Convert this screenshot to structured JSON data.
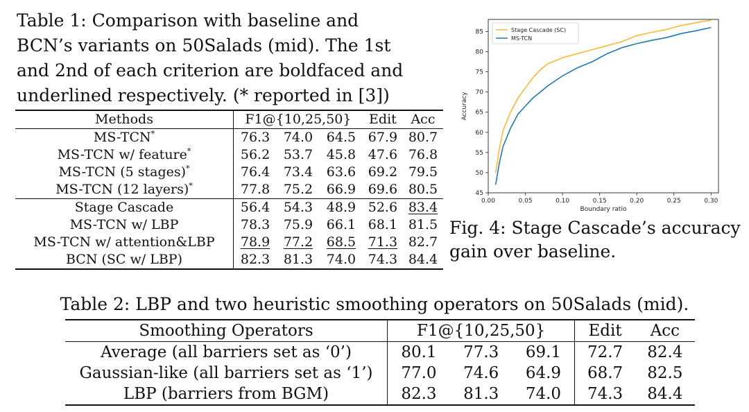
{
  "table1": {
    "caption_lines": [
      "Table 1: Comparison with baseline and",
      "BCN’s variants on 50Salads (mid). The 1st",
      "and 2nd of each criterion are boldfaced and",
      "underlined respectively. (* reported in [3])"
    ],
    "headers": {
      "methods": "Methods",
      "f1": "F1@{10,25,50}",
      "edit": "Edit",
      "acc": "Acc"
    },
    "rows": [
      {
        "method": "MS-TCN",
        "mark": "*",
        "f10": "76.3",
        "f25": "74.0",
        "f50": "64.5",
        "edit": "67.9",
        "acc": "80.7"
      },
      {
        "method": "MS-TCN w/ feature",
        "mark": "*",
        "f10": "56.2",
        "f25": "53.7",
        "f50": "45.8",
        "edit": "47.6",
        "acc": "76.8"
      },
      {
        "method": "MS-TCN (5 stages)",
        "mark": "*",
        "f10": "76.4",
        "f25": "73.4",
        "f50": "63.6",
        "edit": "69.2",
        "acc": "79.5"
      },
      {
        "method": "MS-TCN (12 layers)",
        "mark": "*",
        "f10": "77.8",
        "f25": "75.2",
        "f50": "66.9",
        "edit": "69.6",
        "acc": "80.5"
      },
      {
        "method": "Stage Cascade",
        "mark": "",
        "f10": "56.4",
        "f25": "54.3",
        "f50": "48.9",
        "edit": "52.6",
        "acc": "83.4"
      },
      {
        "method": "MS-TCN w/ LBP",
        "mark": "",
        "f10": "78.3",
        "f25": "75.9",
        "f50": "66.1",
        "edit": "68.1",
        "acc": "81.5"
      },
      {
        "method": "MS-TCN w/ attention&LBP",
        "mark": "",
        "f10": "78.9",
        "f25": "77.2",
        "f50": "68.5",
        "edit": "71.3",
        "acc": "82.7"
      },
      {
        "method": "BCN (SC w/ LBP)",
        "mark": "",
        "f10": "82.3",
        "f25": "81.3",
        "f50": "74.0",
        "edit": "74.3",
        "acc": "84.4"
      }
    ]
  },
  "figure4": {
    "caption_lines": [
      "Fig. 4: Stage Cascade’s accuracy",
      "gain over baseline."
    ]
  },
  "chart_data": {
    "type": "line",
    "title": "",
    "xlabel": "Boundary ratio",
    "ylabel": "Accuracy",
    "xlim": [
      0.0,
      0.31
    ],
    "ylim": [
      45,
      88
    ],
    "xticks": [
      "0.00",
      "0.05",
      "0.10",
      "0.15",
      "0.20",
      "0.25",
      "0.30"
    ],
    "yticks": [
      "45",
      "50",
      "55",
      "60",
      "65",
      "70",
      "75",
      "80",
      "85"
    ],
    "legend_position": "top-left",
    "series": [
      {
        "name": "Stage Cascade (SC)",
        "color": "#ffb733",
        "x": [
          0.01,
          0.015,
          0.02,
          0.03,
          0.04,
          0.05,
          0.06,
          0.07,
          0.08,
          0.1,
          0.12,
          0.14,
          0.16,
          0.18,
          0.2,
          0.22,
          0.24,
          0.26,
          0.28,
          0.3
        ],
        "y": [
          50.0,
          56.0,
          60.5,
          65.0,
          68.5,
          71.0,
          73.5,
          75.5,
          77.0,
          78.5,
          79.5,
          80.5,
          81.5,
          82.5,
          84.0,
          84.8,
          85.5,
          86.5,
          87.2,
          87.8
        ]
      },
      {
        "name": "MS-TCN",
        "color": "#1f77b4",
        "x": [
          0.01,
          0.015,
          0.02,
          0.03,
          0.04,
          0.05,
          0.06,
          0.07,
          0.08,
          0.1,
          0.12,
          0.14,
          0.16,
          0.18,
          0.2,
          0.22,
          0.24,
          0.26,
          0.28,
          0.3
        ],
        "y": [
          47.0,
          52.5,
          56.5,
          61.0,
          64.5,
          66.5,
          68.5,
          70.0,
          71.5,
          74.0,
          76.0,
          77.5,
          79.5,
          81.0,
          82.0,
          82.8,
          83.5,
          84.5,
          85.2,
          86.0
        ]
      }
    ]
  },
  "table2": {
    "caption": "Table 2: LBP and two heuristic smoothing operators on 50Salads (mid).",
    "headers": {
      "operators": "Smoothing Operators",
      "f1": "F1@{10,25,50}",
      "edit": "Edit",
      "acc": "Acc"
    },
    "rows": [
      {
        "operator": "Average (all barriers set as ‘0’)",
        "f10": "80.1",
        "f25": "77.3",
        "f50": "69.1",
        "edit": "72.7",
        "acc": "82.4"
      },
      {
        "operator": "Gaussian-like (all barriers set as ‘1’)",
        "f10": "77.0",
        "f25": "74.6",
        "f50": "64.9",
        "edit": "68.7",
        "acc": "82.5"
      },
      {
        "operator": "LBP (barriers from BGM)",
        "f10": "82.3",
        "f25": "81.3",
        "f50": "74.0",
        "edit": "74.3",
        "acc": "84.4"
      }
    ]
  }
}
